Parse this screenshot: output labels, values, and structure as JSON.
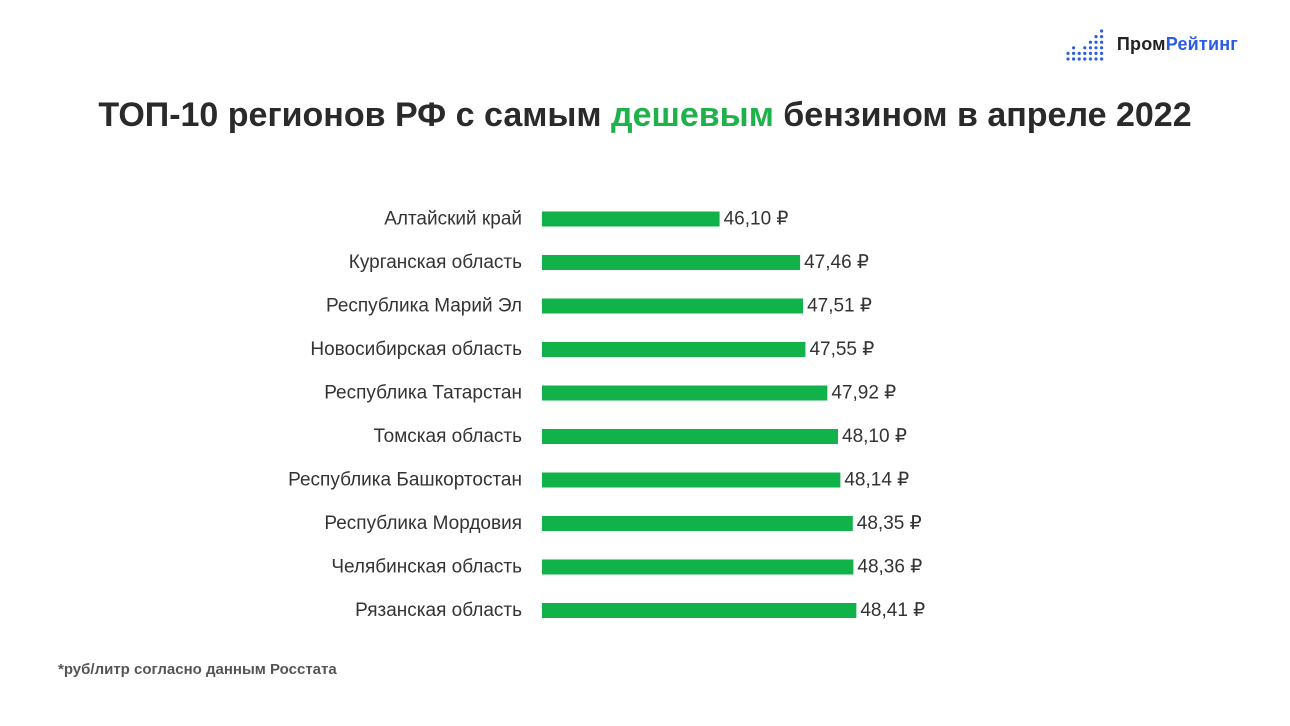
{
  "logo": {
    "text_a": "Пром",
    "text_b": "Рейтинг",
    "colors": {
      "dark": "#222222",
      "blue": "#2b5ce6"
    },
    "icon": "dots-bars-icon"
  },
  "title": {
    "part1": "ТОП-10 регионов РФ с самым ",
    "highlight": "дешевым",
    "part2": " бензином в апреле 2022"
  },
  "footnote": "*руб/литр согласно данным Росстата",
  "colors": {
    "bar": "#12b24b",
    "highlight": "#1fb14a",
    "text": "#333333"
  },
  "chart_data": {
    "type": "bar",
    "orientation": "horizontal",
    "categories": [
      "Алтайский край",
      "Курганская область",
      "Республика Марий Эл",
      "Новосибирская область",
      "Республика Татарстан",
      "Томская область",
      "Республика Башкортостан",
      "Республика Мордовия",
      "Челябинская область",
      "Рязанская область"
    ],
    "values": [
      46.1,
      47.46,
      47.51,
      47.55,
      47.92,
      48.1,
      48.14,
      48.35,
      48.36,
      48.41
    ],
    "value_labels": [
      "46,10 ₽",
      "47,46 ₽",
      "47,51 ₽",
      "47,55 ₽",
      "47,92 ₽",
      "48,10 ₽",
      "48,14 ₽",
      "48,35 ₽",
      "48,36 ₽",
      "48,41 ₽"
    ],
    "grid": false,
    "legend": "none"
  }
}
